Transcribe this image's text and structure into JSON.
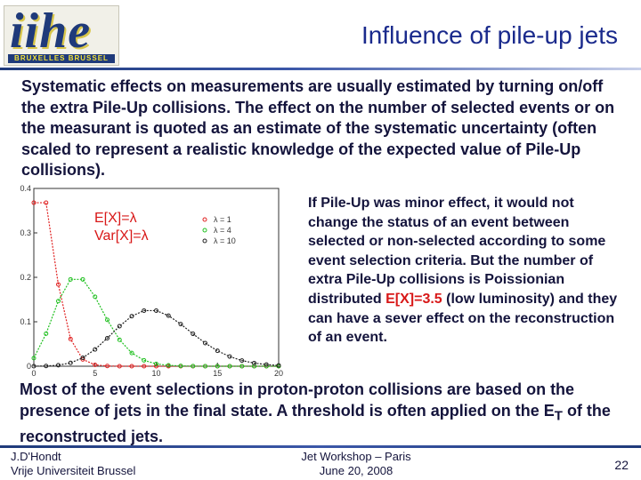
{
  "logo": {
    "word": "iihe",
    "band": "BRUXELLES BRUSSEL"
  },
  "title": "Influence of pile-up jets",
  "intro": "Systematic effects on measurements are usually estimated by turning on/off the extra Pile-Up collisions. The effect on the number of selected events or on the measurant is quoted as an estimate of the systematic uncertainty (often scaled to represent a realistic knowledge of the expected value of Pile-Up collisions).",
  "side": {
    "text_before": "If Pile-Up was minor effect, it would not change the status of an event between selected or non-selected according to some event selection criteria. But the number of extra Pile-Up collisions is Poissionian distributed ",
    "highlight": "E[X]=3.5",
    "text_after": " (low luminosity) and they can have a sever effect on the reconstruction of an event."
  },
  "conclusion": {
    "text_before": "Most of the event selections in proton-proton collisions are based on the presence of jets in the final state. A threshold is often applied on the E",
    "subscript": "T",
    "text_after": " of the reconstructed jets."
  },
  "footer": {
    "author": "J.D'Hondt",
    "institution": "Vrije Universiteit Brussel",
    "event": "Jet Workshop – Paris",
    "date": "June 20, 2008",
    "page": "22"
  },
  "colors": {
    "l1": "#e02020",
    "l4": "#20c020",
    "l10": "#202020",
    "accent_red": "#d81818",
    "title_blue": "#1a2a8c"
  },
  "chart_data": {
    "type": "line",
    "title": "",
    "xlabel": "",
    "ylabel": "",
    "xlim": [
      0,
      20
    ],
    "ylim": [
      0,
      0.4
    ],
    "x_ticks": [
      "0",
      "5",
      "10",
      "15",
      "20"
    ],
    "y_ticks": [
      "0",
      "0.1",
      "0.2",
      "0.3",
      "0.4"
    ],
    "annotation": [
      "E[X]=λ",
      "Var[X]=λ"
    ],
    "series": [
      {
        "name": "λ = 1",
        "lambda": 1,
        "color_key": "l1"
      },
      {
        "name": "λ = 4",
        "lambda": 4,
        "color_key": "l4"
      },
      {
        "name": "λ = 10",
        "lambda": 10,
        "color_key": "l10"
      }
    ]
  }
}
